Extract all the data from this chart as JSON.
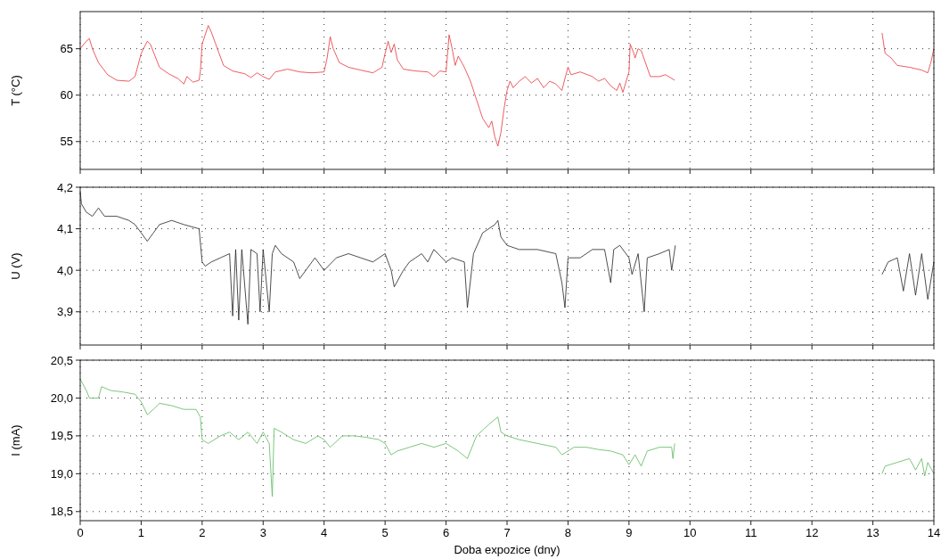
{
  "chart_data": [
    {
      "type": "line",
      "ylabel": "T (°C)",
      "xlim": [
        0,
        14
      ],
      "ylim": [
        52,
        69
      ],
      "xticks": [
        0,
        1,
        2,
        3,
        4,
        5,
        6,
        7,
        8,
        9,
        10,
        11,
        12,
        13,
        14
      ],
      "yticks": [
        55,
        60,
        65
      ],
      "grid": true,
      "tick_labels": "y",
      "series": [
        {
          "color": "#e8333a",
          "x": [
            0,
            0.1,
            0.15,
            0.2,
            0.3,
            0.45,
            0.6,
            0.8,
            0.9,
            1.0,
            1.1,
            1.15,
            1.3,
            1.45,
            1.6,
            1.7,
            1.75,
            1.85,
            1.95,
            1.97,
            2.0,
            2.05,
            2.1,
            2.15,
            2.25,
            2.35,
            2.5,
            2.7,
            2.8,
            2.9,
            3.0,
            3.1,
            3.2,
            3.4,
            3.6,
            3.8,
            4.0,
            4.05,
            4.1,
            4.15,
            4.25,
            4.4,
            4.6,
            4.8,
            4.95,
            5.0,
            5.05,
            5.1,
            5.15,
            5.2,
            5.3,
            5.5,
            5.7,
            5.8,
            5.9,
            6.0,
            6.05,
            6.1,
            6.15,
            6.2,
            6.3,
            6.4,
            6.5,
            6.55,
            6.6,
            6.7,
            6.75,
            6.8,
            6.85,
            6.9,
            6.95,
            7.0,
            7.05,
            7.1,
            7.2,
            7.3,
            7.4,
            7.5,
            7.6,
            7.7,
            7.8,
            7.9,
            7.95,
            8.0,
            8.05,
            8.2,
            8.4,
            8.5,
            8.6,
            8.7,
            8.8,
            8.85,
            8.9,
            9.0,
            9.02,
            9.08,
            9.1,
            9.15,
            9.2,
            9.35,
            9.5,
            9.6,
            9.75,
            11,
            13.15,
            13.2,
            13.3,
            13.4,
            13.6,
            13.8,
            13.9,
            13.95,
            14
          ],
          "values": [
            65,
            65.8,
            66.1,
            65,
            63.5,
            62.2,
            61.6,
            61.5,
            62,
            64.5,
            65.8,
            65.5,
            63,
            62.3,
            61.8,
            61.2,
            62,
            61.4,
            61.6,
            62.5,
            65.5,
            66.5,
            67.5,
            66.8,
            65,
            63.2,
            62.6,
            62.3,
            61.9,
            62.4,
            62,
            61.7,
            62.5,
            62.8,
            62.5,
            62.4,
            62.5,
            64,
            66.3,
            65,
            63.5,
            63,
            62.7,
            62.4,
            63,
            64.5,
            65.8,
            64.6,
            65.5,
            63.8,
            62.8,
            62.6,
            62.5,
            62,
            62.6,
            62.5,
            66.5,
            65,
            63.2,
            64.2,
            63,
            61.5,
            59.5,
            58.5,
            57.5,
            56.5,
            57.2,
            55.5,
            54.5,
            56,
            58.5,
            60.5,
            61.5,
            60.8,
            61.5,
            62,
            61.3,
            61.8,
            60.8,
            61.5,
            61.2,
            60.5,
            61.8,
            63,
            62.2,
            62.5,
            62,
            61.5,
            61.8,
            61,
            60.5,
            61.3,
            60.3,
            62.5,
            65.5,
            64.5,
            64,
            65,
            64.8,
            62,
            62,
            62.2,
            61.6,
            null,
            66.7,
            64.5,
            64,
            63.2,
            63,
            62.7,
            62.4,
            63.5,
            65
          ]
        }
      ]
    },
    {
      "type": "line",
      "ylabel": "U (V)",
      "xlim": [
        0,
        14
      ],
      "ylim": [
        3.82,
        4.2
      ],
      "xticks": [
        0,
        1,
        2,
        3,
        4,
        5,
        6,
        7,
        8,
        9,
        10,
        11,
        12,
        13,
        14
      ],
      "yticks": [
        {
          "value": 3.9,
          "label": "3,9"
        },
        {
          "value": 4.0,
          "label": "4,0"
        },
        {
          "value": 4.1,
          "label": "4,1"
        },
        {
          "value": 4.2,
          "label": "4,2"
        }
      ],
      "grid": true,
      "tick_labels": "y",
      "series": [
        {
          "color": "#222222",
          "x": [
            0,
            0.02,
            0.1,
            0.2,
            0.3,
            0.4,
            0.6,
            0.8,
            0.9,
            1.0,
            1.1,
            1.2,
            1.3,
            1.5,
            1.7,
            1.95,
            2.0,
            2.05,
            2.15,
            2.3,
            2.45,
            2.5,
            2.55,
            2.6,
            2.65,
            2.75,
            2.8,
            2.9,
            2.95,
            3.0,
            3.1,
            3.15,
            3.2,
            3.3,
            3.5,
            3.6,
            3.7,
            3.85,
            4.0,
            4.2,
            4.4,
            4.6,
            4.8,
            5.0,
            5.1,
            5.15,
            5.3,
            5.4,
            5.6,
            5.7,
            5.8,
            6.0,
            6.1,
            6.3,
            6.35,
            6.45,
            6.6,
            6.8,
            6.85,
            6.9,
            7.0,
            7.2,
            7.5,
            7.8,
            7.9,
            7.95,
            8.0,
            8.2,
            8.4,
            8.6,
            8.7,
            8.75,
            8.85,
            9.0,
            9.05,
            9.15,
            9.25,
            9.3,
            9.5,
            9.66,
            9.7,
            9.76,
            11,
            13.15,
            13.25,
            13.4,
            13.5,
            13.6,
            13.7,
            13.8,
            13.9,
            14
          ],
          "values": [
            4.19,
            4.16,
            4.14,
            4.13,
            4.15,
            4.13,
            4.13,
            4.12,
            4.11,
            4.09,
            4.07,
            4.09,
            4.11,
            4.12,
            4.11,
            4.1,
            4.02,
            4.01,
            4.02,
            4.03,
            4.04,
            3.89,
            4.05,
            3.88,
            4.05,
            3.87,
            4.05,
            4.04,
            3.9,
            4.05,
            3.9,
            4.04,
            4.06,
            4.04,
            4.02,
            3.98,
            4.0,
            4.03,
            4.0,
            4.03,
            4.04,
            4.03,
            4.02,
            4.04,
            4.0,
            3.96,
            4.0,
            4.02,
            4.04,
            4.02,
            4.05,
            4.02,
            4.03,
            4.02,
            3.91,
            4.04,
            4.09,
            4.11,
            4.12,
            4.08,
            4.06,
            4.05,
            4.05,
            4.04,
            3.97,
            3.91,
            4.03,
            4.03,
            4.05,
            4.05,
            3.97,
            4.05,
            4.06,
            4.03,
            3.99,
            4.04,
            3.9,
            4.03,
            4.04,
            4.05,
            4.0,
            4.06,
            null,
            3.99,
            4.02,
            4.03,
            3.95,
            4.04,
            3.94,
            4.04,
            3.93,
            4.02
          ]
        }
      ]
    },
    {
      "type": "line",
      "xlabel": "Doba expozice (dny)",
      "ylabel": "I (mA)",
      "xlim": [
        0,
        14
      ],
      "ylim": [
        18.38,
        20.5
      ],
      "xticks": [
        0,
        1,
        2,
        3,
        4,
        5,
        6,
        7,
        8,
        9,
        10,
        11,
        12,
        13,
        14
      ],
      "yticks": [
        {
          "value": 18.5,
          "label": "18,5"
        },
        {
          "value": 19.0,
          "label": "19,0"
        },
        {
          "value": 19.5,
          "label": "19,5"
        },
        {
          "value": 20.0,
          "label": "20,0"
        },
        {
          "value": 20.5,
          "label": "20,5"
        }
      ],
      "grid": true,
      "series": [
        {
          "color": "#5cb85c",
          "x": [
            0,
            0.1,
            0.15,
            0.3,
            0.35,
            0.5,
            0.7,
            0.9,
            1.0,
            1.1,
            1.2,
            1.3,
            1.5,
            1.7,
            1.9,
            1.97,
            2.0,
            2.1,
            2.3,
            2.45,
            2.6,
            2.75,
            2.9,
            3.0,
            3.1,
            3.15,
            3.18,
            3.3,
            3.5,
            3.7,
            3.9,
            4.0,
            4.1,
            4.3,
            4.5,
            4.7,
            4.9,
            5.0,
            5.1,
            5.2,
            5.4,
            5.6,
            5.8,
            6.0,
            6.2,
            6.35,
            6.5,
            6.7,
            6.85,
            6.9,
            7.0,
            7.2,
            7.5,
            7.8,
            7.9,
            8.1,
            8.3,
            8.5,
            8.7,
            8.9,
            9.0,
            9.1,
            9.2,
            9.3,
            9.5,
            9.7,
            9.72,
            9.75,
            11,
            13.15,
            13.2,
            13.4,
            13.6,
            13.7,
            13.8,
            13.85,
            13.9,
            14
          ],
          "values": [
            20.25,
            20.1,
            20.0,
            20.0,
            20.15,
            20.1,
            20.08,
            20.05,
            19.95,
            19.78,
            19.85,
            19.93,
            19.9,
            19.85,
            19.85,
            19.75,
            19.45,
            19.4,
            19.5,
            19.55,
            19.45,
            19.55,
            19.4,
            19.55,
            19.4,
            18.7,
            19.6,
            19.55,
            19.45,
            19.4,
            19.5,
            19.45,
            19.35,
            19.5,
            19.5,
            19.48,
            19.45,
            19.4,
            19.25,
            19.3,
            19.35,
            19.4,
            19.35,
            19.4,
            19.3,
            19.2,
            19.5,
            19.65,
            19.75,
            19.55,
            19.5,
            19.45,
            19.4,
            19.35,
            19.25,
            19.35,
            19.35,
            19.32,
            19.3,
            19.25,
            19.12,
            19.25,
            19.1,
            19.3,
            19.35,
            19.35,
            19.2,
            19.4,
            null,
            19.0,
            19.1,
            19.15,
            19.2,
            19.05,
            19.2,
            18.97,
            19.15,
            19.0
          ]
        }
      ]
    }
  ]
}
